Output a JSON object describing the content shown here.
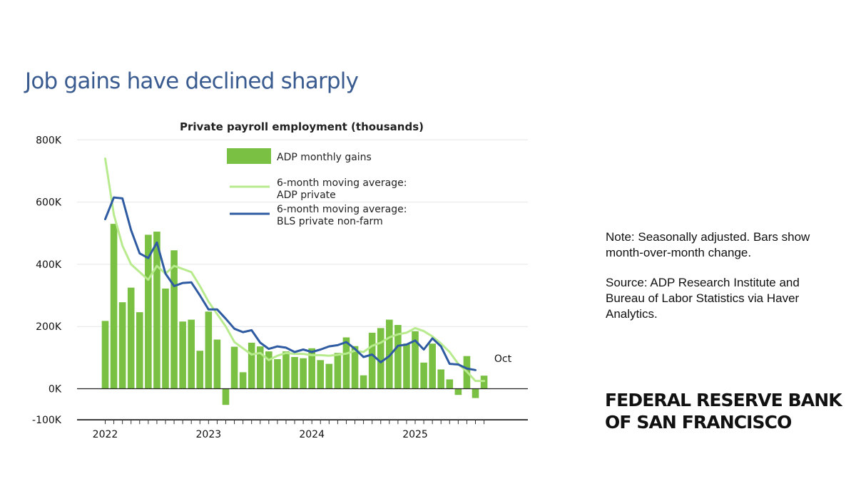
{
  "slide": {
    "title": "Job gains have declined sharply"
  },
  "note": {
    "note_text": "Note: Seasonally adjusted. Bars show month-over-month change.",
    "source_text": "Source: ADP Research Institute and Bureau of Labor Statistics via Haver Analytics."
  },
  "logo": {
    "line1": "FEDERAL RESERVE BANK",
    "line2": "OF SAN FRANCISCO"
  },
  "colors": {
    "title": "#3a5b8f",
    "bars": "#7ac143",
    "adp_line": "#b8ea8e",
    "bls_line": "#2e5ba1",
    "grid": "#e6e6e6"
  },
  "chart_data": {
    "type": "bar",
    "title": "Private payroll employment (thousands)",
    "ylim": [
      -100,
      800
    ],
    "yticks": [
      800,
      600,
      400,
      200,
      0,
      -100
    ],
    "ytick_labels": [
      "800K",
      "600K",
      "400K",
      "200K",
      "0K",
      "-100K"
    ],
    "xtick_labels": [
      "2022",
      "2023",
      "2024",
      "2025"
    ],
    "legend_position": "top-center",
    "start_month": "2022-01",
    "annotation": "Oct",
    "series": [
      {
        "name": "ADP monthly gains",
        "kind": "bar",
        "values": [
          218,
          530,
          278,
          325,
          246,
          495,
          505,
          322,
          445,
          216,
          222,
          122,
          248,
          158,
          -52,
          135,
          53,
          148,
          136,
          120,
          95,
          120,
          102,
          98,
          130,
          92,
          80,
          115,
          165,
          137,
          43,
          180,
          195,
          222,
          205,
          145,
          185,
          84,
          145,
          62,
          30,
          -20,
          105,
          -30,
          42
        ]
      },
      {
        "name": "6-month moving average: ADP private",
        "kind": "line",
        "values": [
          740,
          560,
          460,
          400,
          375,
          350,
          395,
          370,
          395,
          385,
          375,
          330,
          280,
          240,
          200,
          150,
          130,
          110,
          115,
          92,
          106,
          115,
          112,
          112,
          108,
          108,
          106,
          109,
          113,
          122,
          118,
          138,
          148,
          165,
          175,
          180,
          195,
          185,
          168,
          145,
          118,
          80,
          55,
          25,
          25
        ]
      },
      {
        "name": "6-month moving average: BLS private non-farm",
        "kind": "line",
        "values": [
          545,
          615,
          612,
          510,
          435,
          420,
          470,
          370,
          330,
          340,
          342,
          300,
          255,
          255,
          225,
          193,
          182,
          188,
          148,
          128,
          136,
          132,
          118,
          126,
          118,
          126,
          136,
          140,
          150,
          128,
          102,
          110,
          85,
          105,
          138,
          142,
          155,
          126,
          162,
          136,
          80,
          78,
          65,
          60
        ]
      }
    ]
  }
}
